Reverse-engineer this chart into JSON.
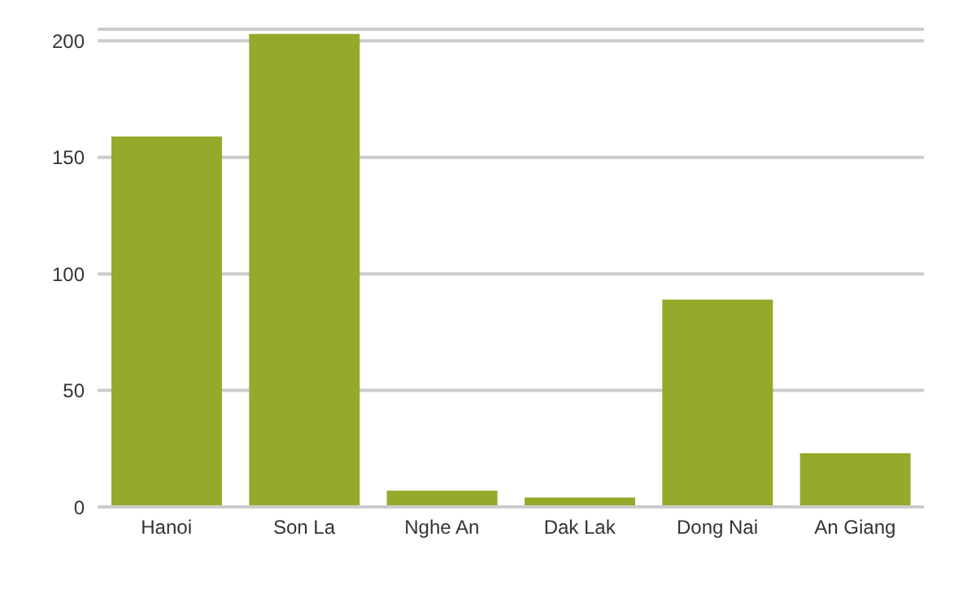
{
  "chart_data": {
    "type": "bar",
    "categories": [
      "Hanoi",
      "Son La",
      "Nghe An",
      "Dak Lak",
      "Dong Nai",
      "An Giang"
    ],
    "values": [
      159,
      203,
      7,
      4,
      89,
      23
    ],
    "color": "#94aa2a",
    "ylim": [
      0,
      205
    ],
    "yticks": [
      0,
      50,
      100,
      150,
      200
    ],
    "grid": "y"
  }
}
